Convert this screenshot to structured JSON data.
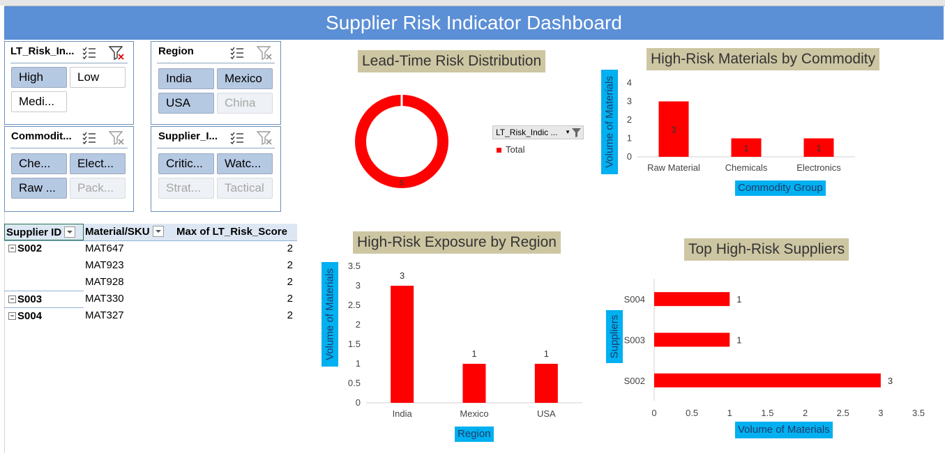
{
  "dashboard": {
    "title": "Supplier Risk Indicator Dashboard"
  },
  "slicers": {
    "lt_risk": {
      "title": "LT_Risk_In...",
      "items": [
        {
          "label": "High",
          "state": "selected"
        },
        {
          "label": "Low",
          "state": "unselected"
        },
        {
          "label": "Medi...",
          "state": "unselected"
        }
      ]
    },
    "region": {
      "title": "Region",
      "items": [
        {
          "label": "India",
          "state": "selected"
        },
        {
          "label": "Mexico",
          "state": "selected"
        },
        {
          "label": "USA",
          "state": "selected"
        },
        {
          "label": "China",
          "state": "disabled"
        }
      ]
    },
    "commodity": {
      "title": "Commodit...",
      "items": [
        {
          "label": "Che...",
          "state": "selected"
        },
        {
          "label": "Elect...",
          "state": "selected"
        },
        {
          "label": "Raw ...",
          "state": "selected"
        },
        {
          "label": "Pack...",
          "state": "disabled"
        }
      ]
    },
    "supplier": {
      "title": "Supplier_I...",
      "items": [
        {
          "label": "Critic...",
          "state": "selected"
        },
        {
          "label": "Watc...",
          "state": "selected"
        },
        {
          "label": "Strat...",
          "state": "disabled"
        },
        {
          "label": "Tactical",
          "state": "disabled"
        }
      ]
    }
  },
  "pivot": {
    "headers": [
      "Supplier ID",
      "Material/SKU",
      "Max of LT_Risk_Score"
    ],
    "rows": [
      {
        "supplier": "S002",
        "material": "MAT647",
        "score": "2"
      },
      {
        "supplier": "",
        "material": "MAT923",
        "score": "2"
      },
      {
        "supplier": "",
        "material": "MAT928",
        "score": "2"
      },
      {
        "supplier": "S003",
        "material": "MAT330",
        "score": "2"
      },
      {
        "supplier": "S004",
        "material": "MAT327",
        "score": "2"
      }
    ]
  },
  "colors": {
    "accent": "#5b8fd6",
    "bar": "#ff0000",
    "title_bg": "#cdc6a2",
    "axis_label_bg": "#00b0f0"
  },
  "chart_data": [
    {
      "type": "pie",
      "title": "Lead-Time Risk Distribution",
      "legend_field": "LT_Risk_Indic ...",
      "categories": [
        "Total"
      ],
      "values": [
        5
      ],
      "data_labels": [
        "5"
      ]
    },
    {
      "type": "bar",
      "title": "High-Risk Materials by Commodity",
      "categories": [
        "Raw Material",
        "Chemicals",
        "Electronics"
      ],
      "values": [
        3,
        1,
        1
      ],
      "xlabel": "Commodity Group",
      "ylabel": "Volume of Materials",
      "ylim": [
        0,
        4
      ],
      "yticks": [
        "0",
        "1",
        "2",
        "3",
        "4"
      ]
    },
    {
      "type": "bar",
      "title": "High-Risk Exposure by Region",
      "categories": [
        "India",
        "Mexico",
        "USA"
      ],
      "values": [
        3,
        1,
        1
      ],
      "xlabel": "Region",
      "ylabel": "Volume of Materials",
      "ylim": [
        0,
        3.5
      ],
      "yticks": [
        "0",
        "0.5",
        "1",
        "1.5",
        "2",
        "2.5",
        "3",
        "3.5"
      ]
    },
    {
      "type": "bar",
      "orientation": "horizontal",
      "title": "Top High-Risk Suppliers",
      "categories": [
        "S004",
        "S003",
        "S002"
      ],
      "values": [
        1,
        1,
        3
      ],
      "xlabel": "Volume of Materials",
      "ylabel": "Suppliers",
      "xlim": [
        0,
        3.5
      ],
      "xticks": [
        "0",
        "0.5",
        "1",
        "1.5",
        "2",
        "2.5",
        "3",
        "3.5"
      ]
    }
  ]
}
